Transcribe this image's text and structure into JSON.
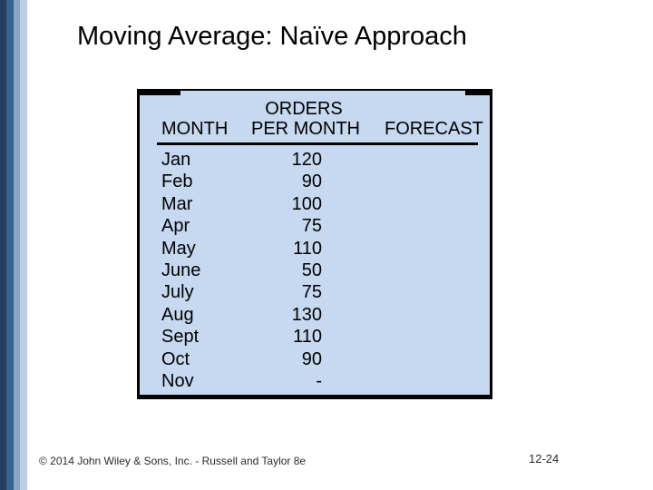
{
  "slide": {
    "title": "Moving Average: Naïve Approach",
    "footer": "© 2014 John Wiley & Sons, Inc. - Russell and Taylor 8e",
    "page_number": "12-24"
  },
  "table": {
    "header": {
      "month": "MONTH",
      "orders_line1": "ORDERS",
      "orders_line2": "PER MONTH",
      "forecast": "FORECAST"
    },
    "rows": [
      {
        "month": "Jan",
        "orders": "120",
        "forecast": ""
      },
      {
        "month": "Feb",
        "orders": "90",
        "forecast": ""
      },
      {
        "month": "Mar",
        "orders": "100",
        "forecast": ""
      },
      {
        "month": "Apr",
        "orders": "75",
        "forecast": ""
      },
      {
        "month": "May",
        "orders": "110",
        "forecast": ""
      },
      {
        "month": "June",
        "orders": "50",
        "forecast": ""
      },
      {
        "month": "July",
        "orders": "75",
        "forecast": ""
      },
      {
        "month": "Aug",
        "orders": "130",
        "forecast": ""
      },
      {
        "month": "Sept",
        "orders": "110",
        "forecast": ""
      },
      {
        "month": "Oct",
        "orders": "90",
        "forecast": ""
      },
      {
        "month": "Nov",
        "orders": "-",
        "forecast": ""
      }
    ]
  },
  "colors": {
    "table_background": "#C6D9F1",
    "table_border": "#000000",
    "stripe_dark_navy": "#253E5E",
    "stripe_medium_blue": "#39628F",
    "stripe_light_blue": "#8BA5C8",
    "stripe_pale_blue": "#BDCEE3",
    "title_text": "#000000",
    "footer_text": "#2B2B2B"
  }
}
